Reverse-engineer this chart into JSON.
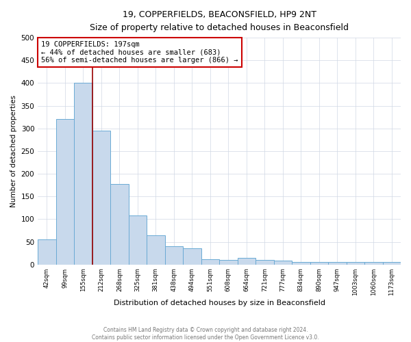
{
  "title": "19, COPPERFIELDS, BEACONSFIELD, HP9 2NT",
  "subtitle": "Size of property relative to detached houses in Beaconsfield",
  "xlabel": "Distribution of detached houses by size in Beaconsfield",
  "ylabel": "Number of detached properties",
  "footer_line1": "Contains HM Land Registry data © Crown copyright and database right 2024.",
  "footer_line2": "Contains public sector information licensed under the Open Government Licence v3.0.",
  "categories": [
    "42sqm",
    "99sqm",
    "155sqm",
    "212sqm",
    "268sqm",
    "325sqm",
    "381sqm",
    "438sqm",
    "494sqm",
    "551sqm",
    "608sqm",
    "664sqm",
    "721sqm",
    "777sqm",
    "834sqm",
    "890sqm",
    "947sqm",
    "1003sqm",
    "1060sqm",
    "1173sqm"
  ],
  "values": [
    55,
    320,
    400,
    295,
    178,
    108,
    65,
    40,
    35,
    12,
    10,
    15,
    10,
    8,
    5,
    5,
    5,
    5,
    5,
    6
  ],
  "bar_color": "#c8d9ec",
  "bar_edge_color": "#6aaad4",
  "marker_color": "#990000",
  "ylim": [
    0,
    500
  ],
  "yticks": [
    0,
    50,
    100,
    150,
    200,
    250,
    300,
    350,
    400,
    450,
    500
  ],
  "annotation_line1": "19 COPPERFIELDS: 197sqm",
  "annotation_line2": "← 44% of detached houses are smaller (683)",
  "annotation_line3": "56% of semi-detached houses are larger (866) →",
  "annotation_box_color": "#ffffff",
  "annotation_box_edge_color": "#cc0000",
  "background_color": "#ffffff",
  "grid_color": "#d0d8e4"
}
